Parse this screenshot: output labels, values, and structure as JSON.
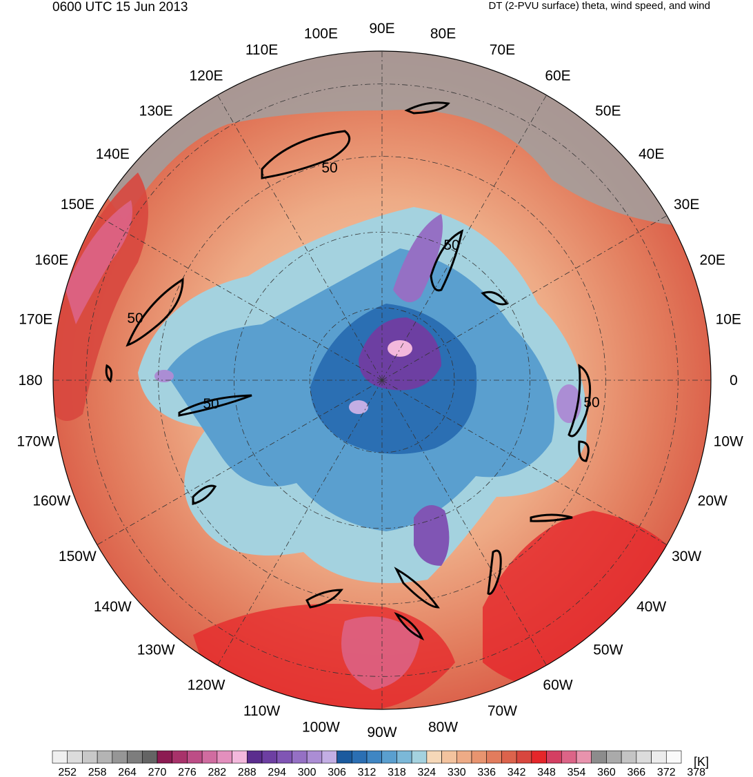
{
  "header": {
    "valid_time": "0600 UTC 15 Jun 2013",
    "field_title": "DT (2-PVU surface) theta, wind speed, and wind"
  },
  "map": {
    "projection": "north-polar-stereographic",
    "center_latitude": 90,
    "longitude_labels": [
      {
        "text": "0",
        "lon": 0
      },
      {
        "text": "10E",
        "lon": 10
      },
      {
        "text": "20E",
        "lon": 20
      },
      {
        "text": "30E",
        "lon": 30
      },
      {
        "text": "40E",
        "lon": 40
      },
      {
        "text": "50E",
        "lon": 50
      },
      {
        "text": "60E",
        "lon": 60
      },
      {
        "text": "70E",
        "lon": 70
      },
      {
        "text": "80E",
        "lon": 80
      },
      {
        "text": "90E",
        "lon": 90
      },
      {
        "text": "100E",
        "lon": 100
      },
      {
        "text": "110E",
        "lon": 110
      },
      {
        "text": "120E",
        "lon": 120
      },
      {
        "text": "130E",
        "lon": 130
      },
      {
        "text": "140E",
        "lon": 140
      },
      {
        "text": "150E",
        "lon": 150
      },
      {
        "text": "160E",
        "lon": 160
      },
      {
        "text": "170E",
        "lon": 170
      },
      {
        "text": "180",
        "lon": 180
      },
      {
        "text": "170W",
        "lon": -170
      },
      {
        "text": "160W",
        "lon": -160
      },
      {
        "text": "150W",
        "lon": -150
      },
      {
        "text": "140W",
        "lon": -140
      },
      {
        "text": "130W",
        "lon": -130
      },
      {
        "text": "120W",
        "lon": -120
      },
      {
        "text": "110W",
        "lon": -110
      },
      {
        "text": "100W",
        "lon": -100
      },
      {
        "text": "90W",
        "lon": -90
      },
      {
        "text": "80W",
        "lon": -80
      },
      {
        "text": "70W",
        "lon": -70
      },
      {
        "text": "60W",
        "lon": -60
      },
      {
        "text": "50W",
        "lon": -50
      },
      {
        "text": "40W",
        "lon": -40
      },
      {
        "text": "30W",
        "lon": -30
      },
      {
        "text": "20W",
        "lon": -20
      },
      {
        "text": "10W",
        "lon": -10
      }
    ],
    "wind_speed_contour_label": "50",
    "wind_speed_contour_labels": [
      {
        "text": "50",
        "lon": 107
      },
      {
        "text": "50",
        "lon": 82
      },
      {
        "text": "50",
        "lon": 163
      },
      {
        "text": "50",
        "lon": -176
      },
      {
        "text": "50",
        "lon": -3
      }
    ]
  },
  "colorbar": {
    "units": "[K]",
    "levels": [
      "252",
      "258",
      "264",
      "270",
      "276",
      "282",
      "288",
      "294",
      "300",
      "306",
      "312",
      "318",
      "324",
      "330",
      "336",
      "342",
      "348",
      "354",
      "360",
      "366",
      "372",
      "378"
    ],
    "colors": [
      "#f0f0f0",
      "#dcdcdc",
      "#c8c8c8",
      "#b4b4b4",
      "#969696",
      "#7d7d7d",
      "#646464",
      "#8c1b52",
      "#a8326a",
      "#bd4d86",
      "#d06ca0",
      "#e38fbd",
      "#f3b8dc",
      "#5b2d8e",
      "#6d3fa2",
      "#8055b4",
      "#9570c4",
      "#ab8dd4",
      "#c3aee4",
      "#1b5a9e",
      "#2b6fb3",
      "#3f86c3",
      "#5a9fcf",
      "#7bb8d8",
      "#a4d2df",
      "#f6d8b8",
      "#f3c39e",
      "#eeab86",
      "#e8946f",
      "#e27c5d",
      "#dc634c",
      "#d8473e",
      "#e5262a",
      "#d43f62",
      "#dc6487",
      "#e893ad",
      "#8c8c8c",
      "#aaaaaa",
      "#c4c4c4",
      "#dcdcdc",
      "#ececec",
      "#fafafa"
    ]
  }
}
